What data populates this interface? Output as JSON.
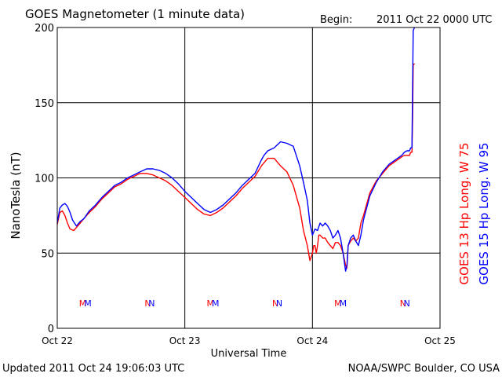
{
  "header": {
    "title": "GOES Magnetometer (1 minute data)",
    "begin_label": "Begin:",
    "begin_value": "2011 Oct 22 0000 UTC"
  },
  "footer": {
    "updated": "Updated 2011 Oct 24 19:06:03 UTC",
    "credit": "NOAA/SWPC Boulder, CO USA"
  },
  "chart_data": {
    "type": "line",
    "title": "GOES Magnetometer (1 minute data)",
    "xlabel": "Universal Time",
    "ylabel": "NanoTesla (nT)",
    "xlim": [
      0,
      3
    ],
    "ylim": [
      0,
      200
    ],
    "grid": true,
    "x_tick_labels": [
      "Oct 22",
      "Oct 23",
      "Oct 24",
      "Oct 25"
    ],
    "y_ticks": [
      0,
      50,
      100,
      150,
      200
    ],
    "series_labels": [
      {
        "text": "GOES 13 Hp  Long. W 75",
        "color": "#ff0000"
      },
      {
        "text": "GOES 15 Hp  Long. W 95",
        "color": "#0000ff"
      }
    ],
    "markers": [
      {
        "text": "M",
        "x_days": 0.2,
        "color": "#ff0000"
      },
      {
        "text": "M",
        "x_days": 0.24,
        "color": "#0000ff"
      },
      {
        "text": "N",
        "x_days": 0.71,
        "color": "#ff0000"
      },
      {
        "text": "N",
        "x_days": 0.74,
        "color": "#0000ff"
      },
      {
        "text": "M",
        "x_days": 1.2,
        "color": "#ff0000"
      },
      {
        "text": "M",
        "x_days": 1.24,
        "color": "#0000ff"
      },
      {
        "text": "N",
        "x_days": 1.71,
        "color": "#ff0000"
      },
      {
        "text": "N",
        "x_days": 1.74,
        "color": "#0000ff"
      },
      {
        "text": "M",
        "x_days": 2.2,
        "color": "#ff0000"
      },
      {
        "text": "M",
        "x_days": 2.24,
        "color": "#0000ff"
      },
      {
        "text": "N",
        "x_days": 2.71,
        "color": "#ff0000"
      },
      {
        "text": "N",
        "x_days": 2.74,
        "color": "#0000ff"
      }
    ],
    "series": [
      {
        "color": "#ff0000",
        "x": [
          0.0,
          0.02,
          0.04,
          0.06,
          0.08,
          0.1,
          0.13,
          0.15,
          0.18,
          0.2,
          0.24,
          0.3,
          0.35,
          0.4,
          0.45,
          0.5,
          0.55,
          0.6,
          0.65,
          0.7,
          0.75,
          0.8,
          0.85,
          0.9,
          0.95,
          1.0,
          1.05,
          1.1,
          1.15,
          1.2,
          1.25,
          1.3,
          1.35,
          1.4,
          1.45,
          1.5,
          1.55,
          1.6,
          1.62,
          1.65,
          1.7,
          1.75,
          1.8,
          1.85,
          1.9,
          1.93,
          1.96,
          1.98,
          2.0,
          2.01,
          2.02,
          2.03,
          2.04,
          2.05,
          2.06,
          2.08,
          2.1,
          2.12,
          2.14,
          2.16,
          2.18,
          2.2,
          2.22,
          2.24,
          2.26,
          2.27,
          2.28,
          2.3,
          2.32,
          2.34,
          2.36,
          2.38,
          2.4,
          2.45,
          2.5,
          2.55,
          2.6,
          2.65,
          2.7,
          2.72,
          2.74,
          2.76,
          2.77,
          2.78,
          2.785,
          2.79,
          2.8
        ],
        "values": [
          69,
          77,
          78,
          75,
          70,
          66,
          65,
          67,
          70,
          72,
          76,
          81,
          86,
          90,
          94,
          96,
          99,
          101,
          103,
          103,
          102,
          100,
          98,
          95,
          91,
          87,
          83,
          79,
          76,
          75,
          77,
          80,
          84,
          88,
          93,
          97,
          101,
          108,
          110,
          113,
          113,
          108,
          104,
          95,
          80,
          65,
          55,
          45,
          50,
          55,
          55,
          50,
          55,
          62,
          62,
          60,
          60,
          57,
          55,
          53,
          57,
          57,
          55,
          50,
          42,
          40,
          55,
          58,
          60,
          58,
          60,
          70,
          75,
          90,
          98,
          103,
          108,
          111,
          114,
          115,
          115,
          115,
          117,
          117,
          140,
          175,
          176
        ]
      },
      {
        "color": "#0000ff",
        "x": [
          0.0,
          0.02,
          0.04,
          0.06,
          0.08,
          0.1,
          0.12,
          0.15,
          0.18,
          0.21,
          0.25,
          0.3,
          0.35,
          0.4,
          0.45,
          0.5,
          0.55,
          0.6,
          0.65,
          0.7,
          0.75,
          0.8,
          0.85,
          0.9,
          0.95,
          1.0,
          1.05,
          1.1,
          1.15,
          1.2,
          1.25,
          1.3,
          1.35,
          1.4,
          1.45,
          1.5,
          1.55,
          1.6,
          1.62,
          1.65,
          1.7,
          1.75,
          1.8,
          1.85,
          1.9,
          1.93,
          1.96,
          1.98,
          2.0,
          2.02,
          2.04,
          2.06,
          2.08,
          2.1,
          2.12,
          2.14,
          2.16,
          2.18,
          2.2,
          2.22,
          2.24,
          2.26,
          2.27,
          2.28,
          2.3,
          2.32,
          2.34,
          2.36,
          2.38,
          2.4,
          2.45,
          2.5,
          2.55,
          2.6,
          2.65,
          2.7,
          2.72,
          2.74,
          2.76,
          2.77,
          2.78,
          2.785,
          2.79,
          2.8
        ],
        "values": [
          70,
          80,
          82,
          83,
          81,
          77,
          72,
          68,
          71,
          73,
          78,
          82,
          87,
          91,
          95,
          97,
          100,
          102,
          104,
          106,
          106,
          105,
          103,
          100,
          96,
          91,
          87,
          83,
          79,
          77,
          79,
          82,
          86,
          90,
          95,
          99,
          103,
          112,
          115,
          118,
          120,
          124,
          123,
          121,
          108,
          97,
          85,
          70,
          62,
          66,
          65,
          70,
          68,
          70,
          68,
          65,
          60,
          62,
          65,
          60,
          50,
          38,
          42,
          55,
          60,
          62,
          58,
          55,
          62,
          72,
          88,
          97,
          104,
          109,
          112,
          115,
          117,
          118,
          118,
          120,
          120,
          160,
          198,
          200
        ]
      }
    ]
  }
}
